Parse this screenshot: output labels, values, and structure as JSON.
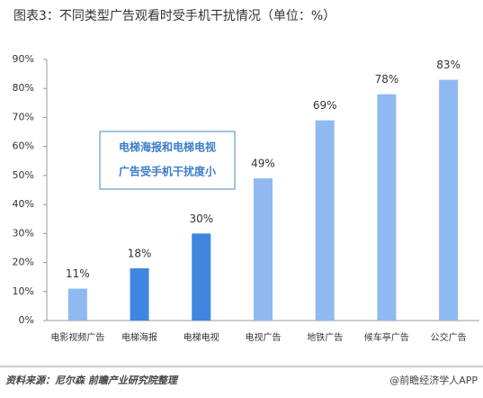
{
  "chart_data": {
    "type": "bar",
    "title": "图表3：不同类型广告观看时受手机干扰情况（单位：%）",
    "categories": [
      "电影视频广告",
      "电梯海报",
      "电梯电视",
      "电视广告",
      "地铁广告",
      "候车亭广告",
      "公交广告"
    ],
    "values": [
      11,
      18,
      30,
      49,
      69,
      78,
      83
    ],
    "value_labels": [
      "11%",
      "18%",
      "30%",
      "49%",
      "69%",
      "78%",
      "83%"
    ],
    "colors": [
      "#8fb9f0",
      "#3f86e0",
      "#3f86e0",
      "#8fb9f0",
      "#8fb9f0",
      "#8fb9f0",
      "#8fb9f0"
    ],
    "ylim": [
      0,
      90
    ],
    "yticks": [
      {
        "value": 0,
        "label": "0%"
      },
      {
        "value": 10,
        "label": "10%"
      },
      {
        "value": 20,
        "label": "20%"
      },
      {
        "value": 30,
        "label": "30%"
      },
      {
        "value": 40,
        "label": "40%"
      },
      {
        "value": 50,
        "label": "50%"
      },
      {
        "value": 60,
        "label": "60%"
      },
      {
        "value": 70,
        "label": "70%"
      },
      {
        "value": 80,
        "label": "80%"
      },
      {
        "value": 90,
        "label": "90%"
      }
    ],
    "grid": false,
    "annotation": [
      "电梯海报和电梯电视",
      "广告受手机干扰度小"
    ],
    "source": "资料来源：尼尔森 前瞻产业研究院整理",
    "credit": "@前瞻经济学人APP"
  }
}
